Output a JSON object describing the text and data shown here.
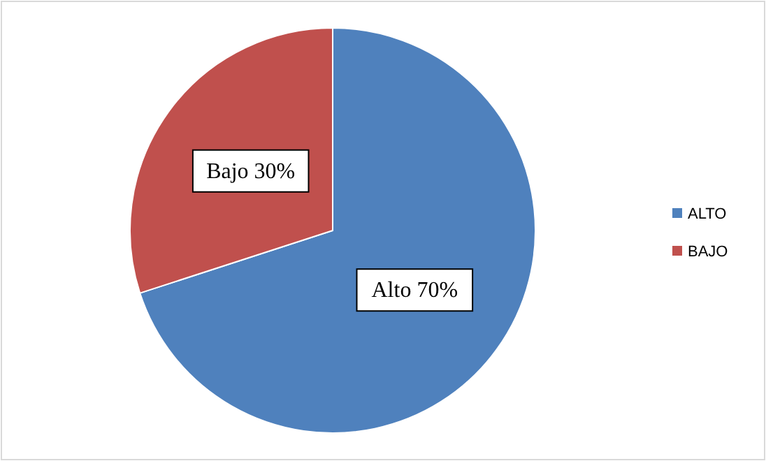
{
  "chart_data": {
    "type": "pie",
    "categories": [
      "ALTO",
      "BAJO"
    ],
    "values": [
      70,
      30
    ],
    "colors": [
      "#4f81bd",
      "#c0504d"
    ],
    "value_labels": [
      "Alto 70%",
      "Bajo 30%"
    ],
    "legend": "right"
  }
}
